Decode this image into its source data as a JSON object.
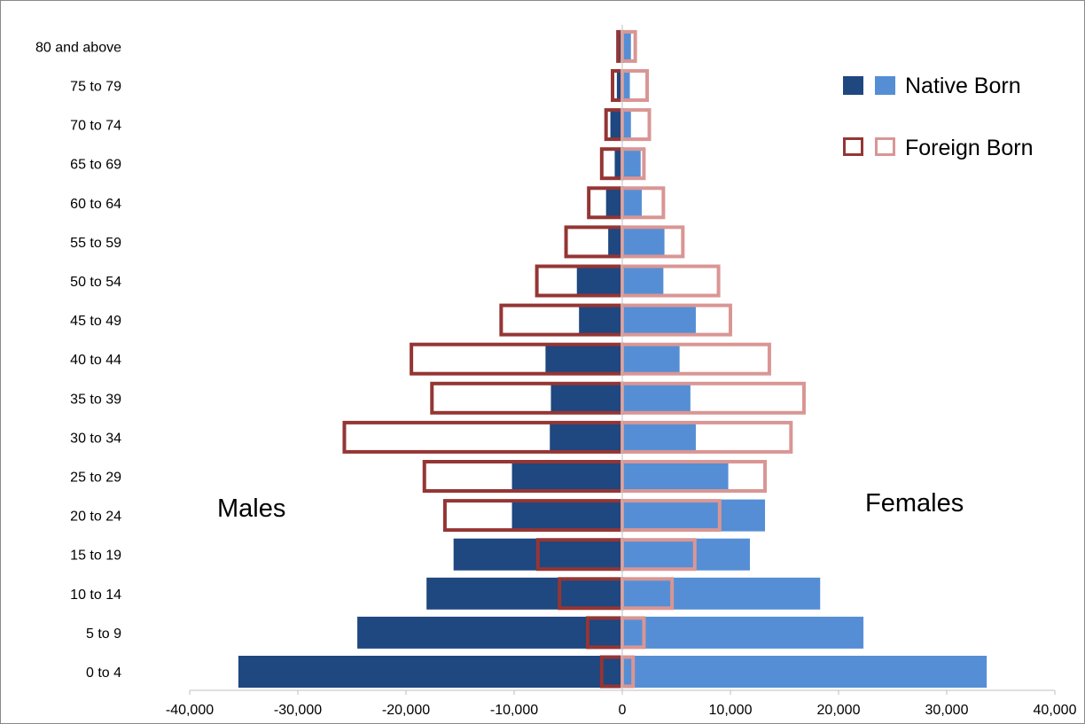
{
  "chart_data": {
    "type": "bar",
    "orientation": "horizontal",
    "subtype": "population-pyramid",
    "categories": [
      "0 to 4",
      "5 to 9",
      "10 to 14",
      "15 to 19",
      "20 to 24",
      "25 to 29",
      "30 to 34",
      "35 to 39",
      "40 to 44",
      "45 to 49",
      "50 to 54",
      "55 to 59",
      "60 to 64",
      "65 to 69",
      "70 to 74",
      "75 to 79",
      "80 and above"
    ],
    "series": [
      {
        "name": "Native Born",
        "group": "Males",
        "style": "filled",
        "color": "#1F4780",
        "values": [
          -35500,
          -24500,
          -18100,
          -15600,
          -10200,
          -10200,
          -6700,
          -6600,
          -7100,
          -4000,
          -4200,
          -1300,
          -1500,
          -700,
          -1100,
          -500,
          -300
        ]
      },
      {
        "name": "Native Born",
        "group": "Females",
        "style": "filled",
        "color": "#558ED5",
        "values": [
          33700,
          22300,
          18300,
          11800,
          13200,
          9800,
          6800,
          6300,
          5300,
          6800,
          3800,
          3900,
          1800,
          1700,
          800,
          700,
          800
        ]
      },
      {
        "name": "Foreign Born",
        "group": "Males",
        "style": "outline",
        "color": "#943634",
        "values": [
          -1900,
          -3200,
          -5800,
          -7800,
          -16400,
          -18300,
          -25700,
          -17600,
          -19500,
          -11200,
          -7900,
          -5200,
          -3100,
          -1900,
          -1500,
          -900,
          -400
        ]
      },
      {
        "name": "Foreign Born",
        "group": "Females",
        "style": "outline",
        "color": "#D99694",
        "values": [
          1000,
          2000,
          4600,
          6700,
          9000,
          13200,
          15600,
          16800,
          13600,
          10000,
          8900,
          5600,
          3800,
          2000,
          2500,
          2300,
          1200
        ]
      }
    ],
    "x_axis": {
      "range": [
        -40000,
        40000
      ],
      "ticks": [
        -40000,
        -30000,
        -20000,
        -10000,
        0,
        10000,
        20000,
        30000,
        40000
      ],
      "tick_labels": [
        "-40,000",
        "-30,000",
        "-20,000",
        "-10,000",
        "0",
        "10,000",
        "20,000",
        "30,000",
        "40,000"
      ]
    },
    "legend": {
      "position": "top-right",
      "entries": [
        {
          "label": "Native Born",
          "swatch_colors": [
            "#1F4780",
            "#558ED5"
          ],
          "style": "filled"
        },
        {
          "label": "Foreign Born",
          "swatch_colors": [
            "#943634",
            "#D99694"
          ],
          "style": "outline"
        }
      ]
    },
    "annotations": {
      "left": "Males",
      "right": "Females"
    },
    "grid": false
  }
}
